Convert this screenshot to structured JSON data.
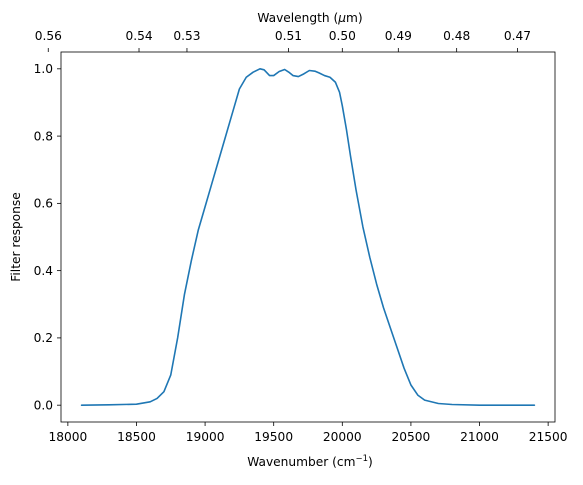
{
  "chart_data": {
    "type": "line",
    "xlabel_main": "Wavenumber (cm",
    "xlabel_sup": "−1",
    "xlabel_tail": ")",
    "ylabel": "Filter response",
    "top_xlabel_main": "Wavelength (",
    "top_xlabel_mu": "μ",
    "top_xlabel_tail": "m)",
    "xlim": [
      17950,
      21550
    ],
    "ylim": [
      -0.05,
      1.05
    ],
    "xticks": [
      18000,
      18500,
      19000,
      19500,
      20000,
      20500,
      21000,
      21500
    ],
    "xtick_labels": [
      "18000",
      "18500",
      "19000",
      "19500",
      "20000",
      "20500",
      "21000",
      "21500"
    ],
    "yticks": [
      0.0,
      0.2,
      0.4,
      0.6,
      0.8,
      1.0
    ],
    "ytick_labels": [
      "0.0",
      "0.2",
      "0.4",
      "0.6",
      "0.8",
      "1.0"
    ],
    "top_ticks_um": [
      0.56,
      0.54,
      0.53,
      0.51,
      0.5,
      0.49,
      0.48,
      0.47
    ],
    "top_tick_labels": [
      "0.56",
      "0.54",
      "0.53",
      "0.51",
      "0.50",
      "0.49",
      "0.48",
      "0.47"
    ],
    "grid": false,
    "line_color": "#1f77b4",
    "series": [
      {
        "x": [
          18100,
          18300,
          18500,
          18600,
          18650,
          18700,
          18750,
          18800,
          18850,
          18900,
          18950,
          19000,
          19050,
          19100,
          19150,
          19200,
          19250,
          19300,
          19350,
          19400,
          19430,
          19470,
          19500,
          19540,
          19580,
          19610,
          19640,
          19680,
          19720,
          19760,
          19800,
          19830,
          19870,
          19910,
          19950,
          19980,
          20000,
          20030,
          20060,
          20100,
          20150,
          20200,
          20250,
          20300,
          20350,
          20400,
          20450,
          20500,
          20550,
          20600,
          20700,
          20800,
          21000,
          21200,
          21400
        ],
        "y": [
          0.0,
          0.001,
          0.003,
          0.01,
          0.02,
          0.04,
          0.09,
          0.2,
          0.33,
          0.43,
          0.52,
          0.59,
          0.66,
          0.73,
          0.8,
          0.87,
          0.94,
          0.975,
          0.99,
          1.0,
          0.997,
          0.98,
          0.98,
          0.992,
          0.998,
          0.99,
          0.98,
          0.977,
          0.985,
          0.995,
          0.993,
          0.988,
          0.98,
          0.975,
          0.96,
          0.93,
          0.89,
          0.82,
          0.74,
          0.64,
          0.53,
          0.44,
          0.36,
          0.29,
          0.23,
          0.17,
          0.11,
          0.06,
          0.03,
          0.015,
          0.005,
          0.002,
          0.0,
          0.0,
          0.0
        ]
      }
    ]
  }
}
